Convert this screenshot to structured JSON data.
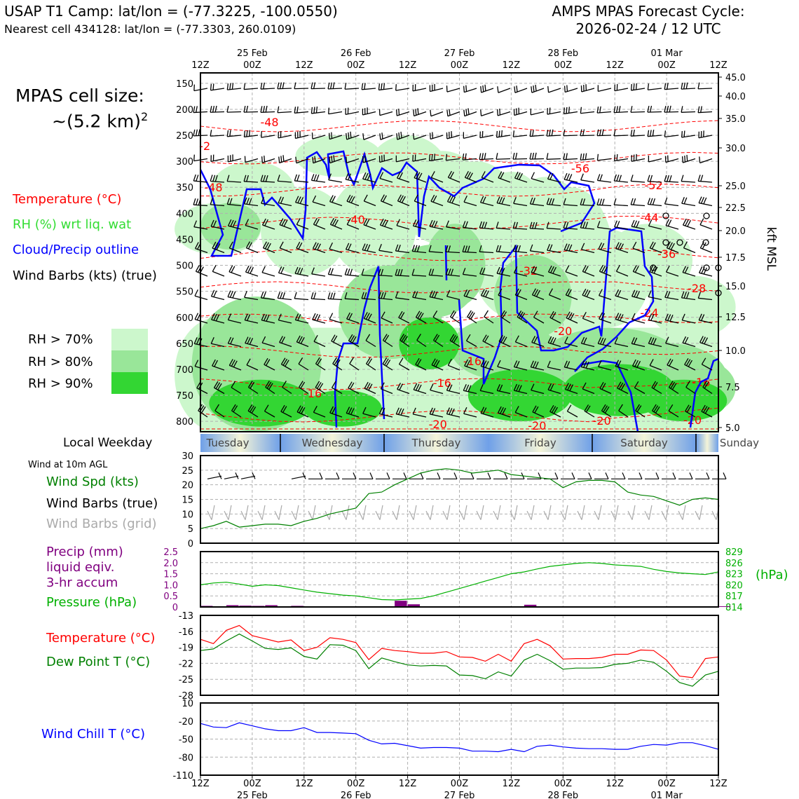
{
  "header": {
    "station": "USAP T1 Camp: lat/lon = (-77.3225, -100.0550)",
    "nearest_cell": "Nearest cell 434128: lat/lon = (-77.3303, 260.0109)",
    "cycle_line1": "AMPS MPAS Forecast Cycle:",
    "cycle_line2": "2026-02-24 / 12 UTC"
  },
  "cell_size": {
    "line1": "MPAS cell size:",
    "line2": "~(5.2 km)",
    "exp": "2"
  },
  "legend_main": [
    {
      "text": "Temperature (°C)",
      "color": "#ff0000"
    },
    {
      "text": "RH (%) wrt liq. wat",
      "color": "#33cc33"
    },
    {
      "text": "Cloud/Precip outline",
      "color": "#0000ff"
    },
    {
      "text": "Wind Barbs (kts) (true)",
      "color": "#000000"
    }
  ],
  "rh_legend": [
    {
      "text": "RH > 70%",
      "color": "#ccf7cc"
    },
    {
      "text": "RH > 80%",
      "color": "#99e699"
    },
    {
      "text": "RH > 90%",
      "color": "#33d633"
    }
  ],
  "time_axis": {
    "top_labels": [
      "12Z",
      "00Z",
      "12Z",
      "00Z",
      "12Z",
      "00Z",
      "12Z",
      "00Z",
      "12Z",
      "00Z",
      "12Z"
    ],
    "date_labels": [
      "25 Feb",
      "26 Feb",
      "27 Feb",
      "28 Feb",
      "01 Mar"
    ],
    "bottom_labels": [
      "12Z",
      "00Z",
      "12Z",
      "00Z",
      "12Z",
      "00Z",
      "12Z",
      "00Z",
      "12Z",
      "00Z",
      "12Z"
    ]
  },
  "weekday_bar": {
    "title": "Local Weekday",
    "days": [
      "Tuesday",
      "Wednesday",
      "Thursday",
      "Friday",
      "Saturday",
      "Sunday"
    ]
  },
  "sfc_legend": {
    "title": "Wind at 10m AGL",
    "items": [
      {
        "text": "Wind Spd (kts)",
        "color": "#008000"
      },
      {
        "text": "Wind Barbs (true)",
        "color": "#000000"
      },
      {
        "text": "Wind Barbs (grid)",
        "color": "#aaaaaa"
      }
    ]
  },
  "precip_legend": [
    {
      "text": "Precip (mm)",
      "color": "#800080"
    },
    {
      "text": "liquid eqiv.",
      "color": "#800080"
    },
    {
      "text": "3-hr accum",
      "color": "#800080"
    },
    {
      "text": "Pressure (hPa)",
      "color": "#00b000"
    }
  ],
  "pressure_unit": "(hPa)",
  "temp_legend": [
    {
      "text": "Temperature (°C)",
      "color": "#ff0000"
    },
    {
      "text": "Dew Point T (°C)",
      "color": "#008000"
    }
  ],
  "windchill_legend": {
    "text": "Wind Chill T (°C)",
    "color": "#0000ff"
  },
  "right_axis_title": "kft MSL",
  "chart_data": [
    {
      "type": "heatmap",
      "panel": "time-height cross section",
      "x_range_hours": [
        0,
        120
      ],
      "y_pressure_ticks": [
        150,
        200,
        250,
        300,
        350,
        400,
        450,
        500,
        550,
        600,
        650,
        700,
        750,
        800
      ],
      "y_right_kft_ticks": [
        "45.0",
        "40.0",
        "35.0",
        "30.0",
        "25.0",
        "22.5",
        "20.0",
        "17.5",
        "15.0",
        "12.5",
        "10.0",
        "7.5",
        "5.0"
      ],
      "temperature_labels": [
        "-48",
        "-2",
        "-48",
        "-40",
        "-56",
        "-52",
        "-44",
        "-36",
        "-32",
        "-28",
        "-24",
        "-20",
        "-16",
        "-16",
        "-16",
        "-16",
        "-20",
        "-20",
        "-20",
        "-20"
      ]
    },
    {
      "type": "line",
      "panel": "wind speed",
      "ylabel": "",
      "ylim": [
        0,
        30
      ],
      "yticks": [
        "30",
        "25",
        "20",
        "15",
        "10",
        "5",
        "0"
      ],
      "x_hours": [
        0,
        3,
        6,
        9,
        12,
        15,
        18,
        21,
        24,
        27,
        30,
        33,
        36,
        39,
        42,
        45,
        48,
        51,
        54,
        57,
        60,
        63,
        66,
        69,
        72,
        75,
        78,
        81,
        84,
        87,
        90,
        93,
        96,
        99,
        102,
        105,
        108,
        111,
        114,
        117,
        120
      ],
      "series": [
        {
          "values": [
            5,
            6,
            7.5,
            5.5,
            6,
            6.5,
            6.5,
            6,
            7.5,
            8.5,
            10,
            11,
            12,
            17,
            17.5,
            20,
            22,
            24,
            25,
            25.5,
            25,
            24,
            24.5,
            25,
            23.5,
            23,
            22.5,
            22,
            19,
            21,
            21.5,
            21.5,
            21,
            17.5,
            16.5,
            16,
            14.5,
            13,
            15,
            15.5,
            15
          ],
          "color": "#008000"
        }
      ]
    },
    {
      "type": "bar",
      "panel": "precipitation and pressure",
      "precip_ylim": [
        0,
        2.5
      ],
      "precip_yticks": [
        "2.5",
        "2.0",
        "1.5",
        "1.0",
        "0.5",
        "0"
      ],
      "pressure_ylim": [
        814,
        829
      ],
      "pressure_yticks": [
        "829",
        "826",
        "823",
        "820",
        "817",
        "814"
      ],
      "x_hours": [
        0,
        3,
        6,
        9,
        12,
        15,
        18,
        21,
        24,
        27,
        30,
        33,
        36,
        39,
        42,
        45,
        48,
        51,
        54,
        57,
        60,
        63,
        66,
        69,
        72,
        75,
        78,
        81,
        84,
        87,
        90,
        93,
        96,
        99,
        102,
        105,
        108,
        111,
        114,
        117,
        120
      ],
      "series": [
        {
          "name": "Precip (mm)",
          "color": "#800080",
          "values": [
            0.05,
            0.03,
            0.08,
            0.06,
            0.05,
            0.08,
            0.03,
            0.05,
            0.03,
            0.02,
            0.02,
            0,
            0,
            0.02,
            0.02,
            0.28,
            0.12,
            0.02,
            0.03,
            0.02,
            0,
            0,
            0,
            0.02,
            0.03,
            0.1,
            0.03,
            0.02,
            0,
            0,
            0,
            0,
            0,
            0,
            0,
            0,
            0,
            0,
            0,
            0.03,
            0.03
          ]
        },
        {
          "name": "Pressure (hPa)",
          "color": "#00b000",
          "values": [
            820,
            820.5,
            820.7,
            820.2,
            819.6,
            820,
            819.8,
            819.2,
            818.6,
            818,
            817.6,
            817.2,
            817,
            816.5,
            816,
            815.9,
            816.1,
            816.3,
            817,
            818,
            819,
            820,
            821,
            822,
            823,
            823.5,
            824.3,
            825,
            825.4,
            825.8,
            826,
            825.8,
            825.4,
            825.2,
            825,
            824.2,
            823.6,
            823.2,
            823,
            822.8,
            823.5
          ]
        }
      ]
    },
    {
      "type": "line",
      "panel": "temperature and dew point",
      "ylim": [
        -28,
        -13
      ],
      "yticks": [
        "-13",
        "-16",
        "-19",
        "-22",
        "-25",
        "-28"
      ],
      "x_hours": [
        0,
        3,
        6,
        9,
        12,
        15,
        18,
        21,
        24,
        27,
        30,
        33,
        36,
        39,
        42,
        45,
        48,
        51,
        54,
        57,
        60,
        63,
        66,
        69,
        72,
        75,
        78,
        81,
        84,
        87,
        90,
        93,
        96,
        99,
        102,
        105,
        108,
        111,
        114,
        117,
        120
      ],
      "series": [
        {
          "name": "Temperature (°C)",
          "color": "#ff0000",
          "values": [
            -17.5,
            -18.3,
            -15.8,
            -14.9,
            -16.8,
            -17.4,
            -18,
            -17.6,
            -19.6,
            -19,
            -17.2,
            -17.5,
            -18.1,
            -21.3,
            -19.2,
            -19.6,
            -19.8,
            -20.1,
            -20.1,
            -19.8,
            -20.8,
            -20.9,
            -21.6,
            -20.3,
            -21.6,
            -18.3,
            -17.5,
            -18.7,
            -21.2,
            -21.1,
            -21.1,
            -20.9,
            -20.3,
            -20.3,
            -19.5,
            -19.6,
            -21.4,
            -24.4,
            -24.7,
            -21.1,
            -20.8
          ]
        },
        {
          "name": "Dew Point T (°C)",
          "color": "#008000",
          "values": [
            -19.6,
            -19.3,
            -17.8,
            -16.5,
            -17.8,
            -19.2,
            -19.4,
            -19.1,
            -20.7,
            -21.2,
            -18.5,
            -18.6,
            -19.6,
            -23,
            -21,
            -21.7,
            -22.3,
            -22.5,
            -22.4,
            -22.5,
            -24.2,
            -24.3,
            -24.9,
            -23.6,
            -24.4,
            -21.4,
            -20.3,
            -21.5,
            -23.1,
            -22.9,
            -22.9,
            -22.8,
            -22.2,
            -22,
            -21.4,
            -21.8,
            -23.5,
            -25.6,
            -26.3,
            -24.2,
            -23.5
          ]
        }
      ]
    },
    {
      "type": "line",
      "panel": "wind chill",
      "ylim": [
        -110,
        10
      ],
      "yticks": [
        "10",
        "-20",
        "-50",
        "-80",
        "-110"
      ],
      "x_hours": [
        0,
        3,
        6,
        9,
        12,
        15,
        18,
        21,
        24,
        27,
        30,
        33,
        36,
        39,
        42,
        45,
        48,
        51,
        54,
        57,
        60,
        63,
        66,
        69,
        72,
        75,
        78,
        81,
        84,
        87,
        90,
        93,
        96,
        99,
        102,
        105,
        108,
        111,
        114,
        117,
        120
      ],
      "series": [
        {
          "name": "Wind Chill T (°C)",
          "color": "#0000ff",
          "values": [
            -24,
            -30,
            -31,
            -23,
            -28,
            -33,
            -36,
            -36,
            -31,
            -39,
            -39,
            -40,
            -41,
            -52,
            -58,
            -57,
            -61,
            -65,
            -64,
            -64,
            -65,
            -70,
            -70,
            -71,
            -67,
            -71,
            -62,
            -60,
            -63,
            -65,
            -66,
            -66,
            -67,
            -67,
            -62,
            -59,
            -60,
            -56,
            -56,
            -61,
            -67
          ]
        }
      ]
    }
  ]
}
